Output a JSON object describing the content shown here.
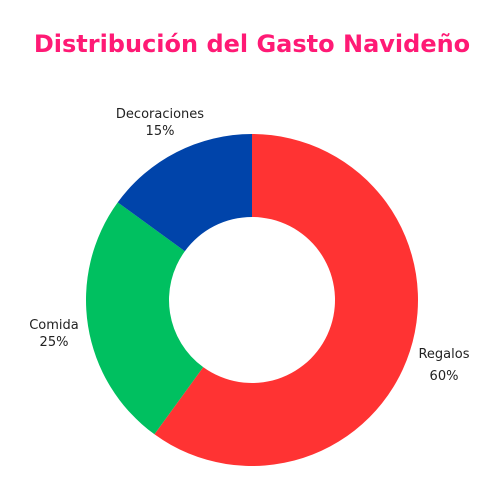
{
  "chart_data": {
    "type": "pie",
    "title": "Distribución del Gasto Navideño",
    "title_color": "#ff1a75",
    "donut": true,
    "slices": [
      {
        "label": "Regalos",
        "value": 60,
        "value_label": "60%",
        "color": "#ff3333"
      },
      {
        "label": "Comida",
        "value": 25,
        "value_label": "25%",
        "color": "#00c060"
      },
      {
        "label": "Decoraciones",
        "value": 15,
        "value_label": "15%",
        "color": "#0044aa"
      }
    ]
  }
}
